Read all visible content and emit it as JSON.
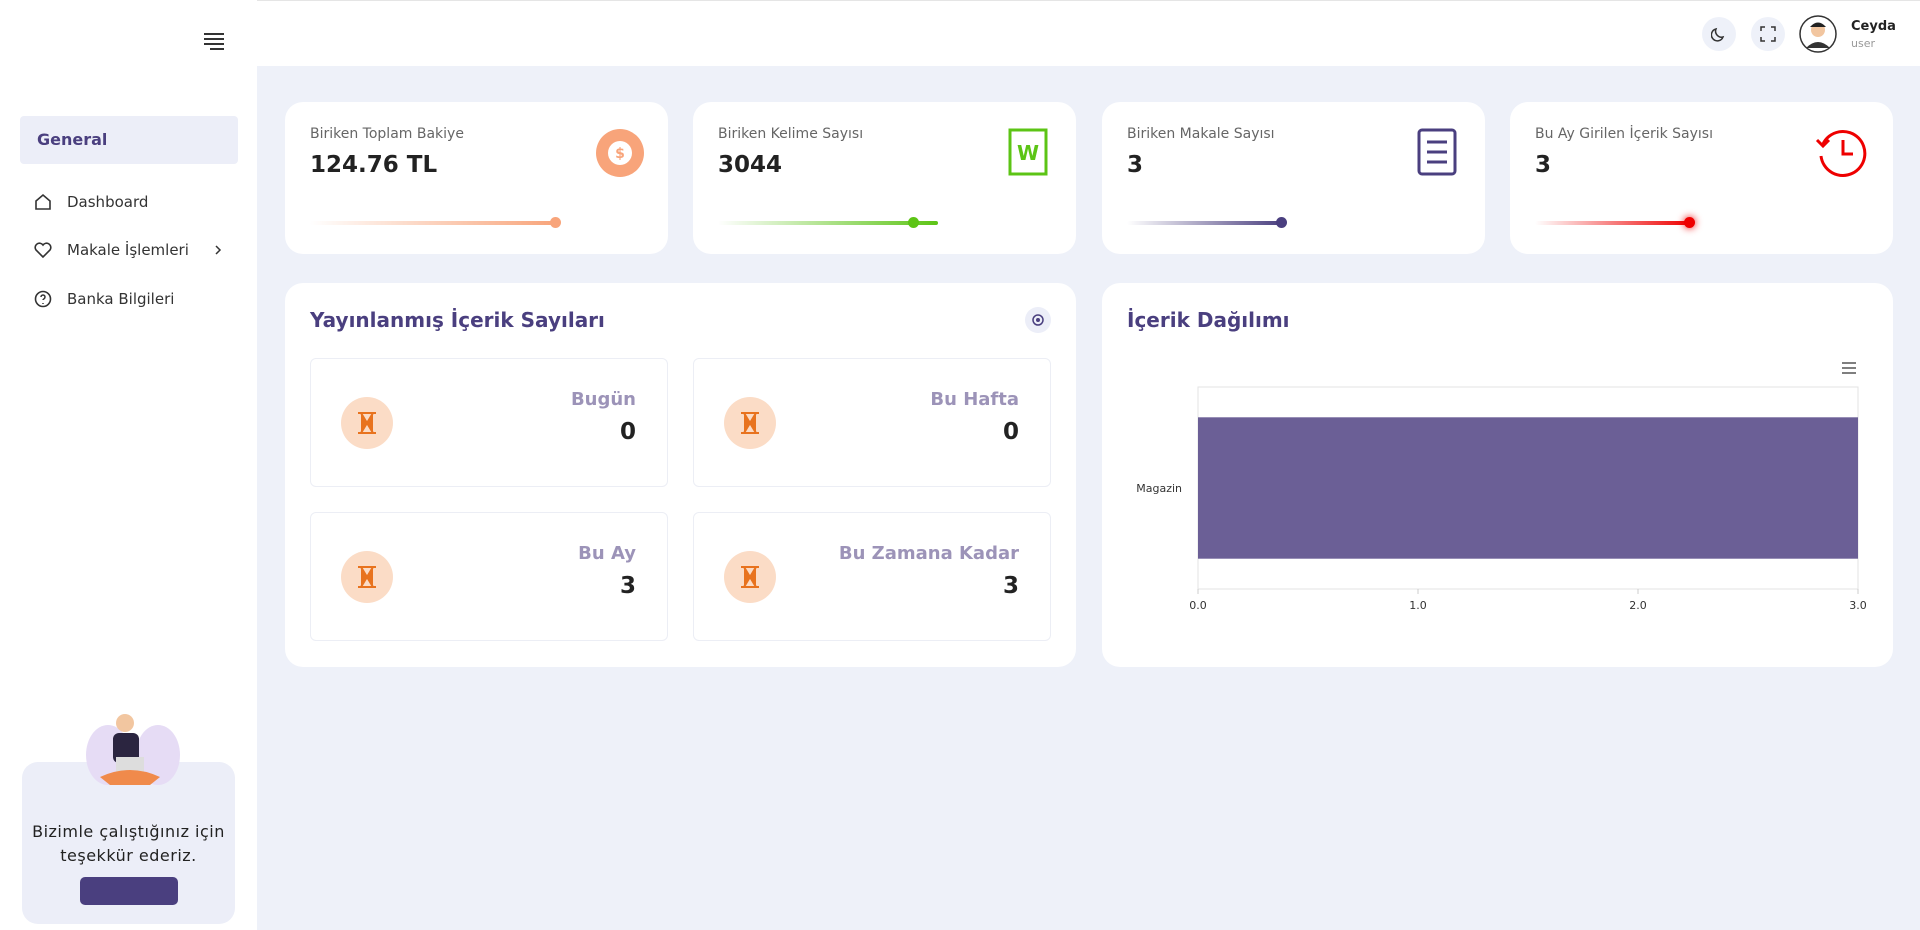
{
  "sidebar": {
    "section": "General",
    "menu": [
      "Dashboard",
      "Makale İşlemleri",
      "Banka Bilgileri"
    ],
    "promo": "Bizimle çalıştığınız için teşekkür ederiz."
  },
  "header": {
    "user_name": "Ceyda",
    "user_role": "user"
  },
  "stats": [
    {
      "label": "Biriken Toplam Bakiye",
      "value": "124.76 TL"
    },
    {
      "label": "Biriken Kelime Sayısı",
      "value": 3044
    },
    {
      "label": "Biriken Makale Sayısı",
      "value": 3
    },
    {
      "label": "Bu Ay Girilen İçerik Sayısı",
      "value": 3
    }
  ],
  "published": {
    "title": "Yayınlanmış İçerik Sayıları",
    "items": [
      {
        "label": "Bugün",
        "value": 0
      },
      {
        "label": "Bu Hafta",
        "value": 0
      },
      {
        "label": "Bu Ay",
        "value": 3
      },
      {
        "label": "Bu Zamana Kadar",
        "value": 3
      }
    ]
  },
  "distribution": {
    "title": "İçerik Dağılımı",
    "chart_data": {
      "type": "bar",
      "orientation": "horizontal",
      "categories": [
        "Magazin"
      ],
      "values": [
        3
      ],
      "color": "#6b5f96",
      "xlim": [
        0,
        3
      ],
      "xticks": [
        {
          "value": 0,
          "label": "0.0"
        },
        {
          "value": 1,
          "label": "1.0"
        },
        {
          "value": 2,
          "label": "2.0"
        },
        {
          "value": 3,
          "label": "3.0"
        }
      ]
    }
  }
}
